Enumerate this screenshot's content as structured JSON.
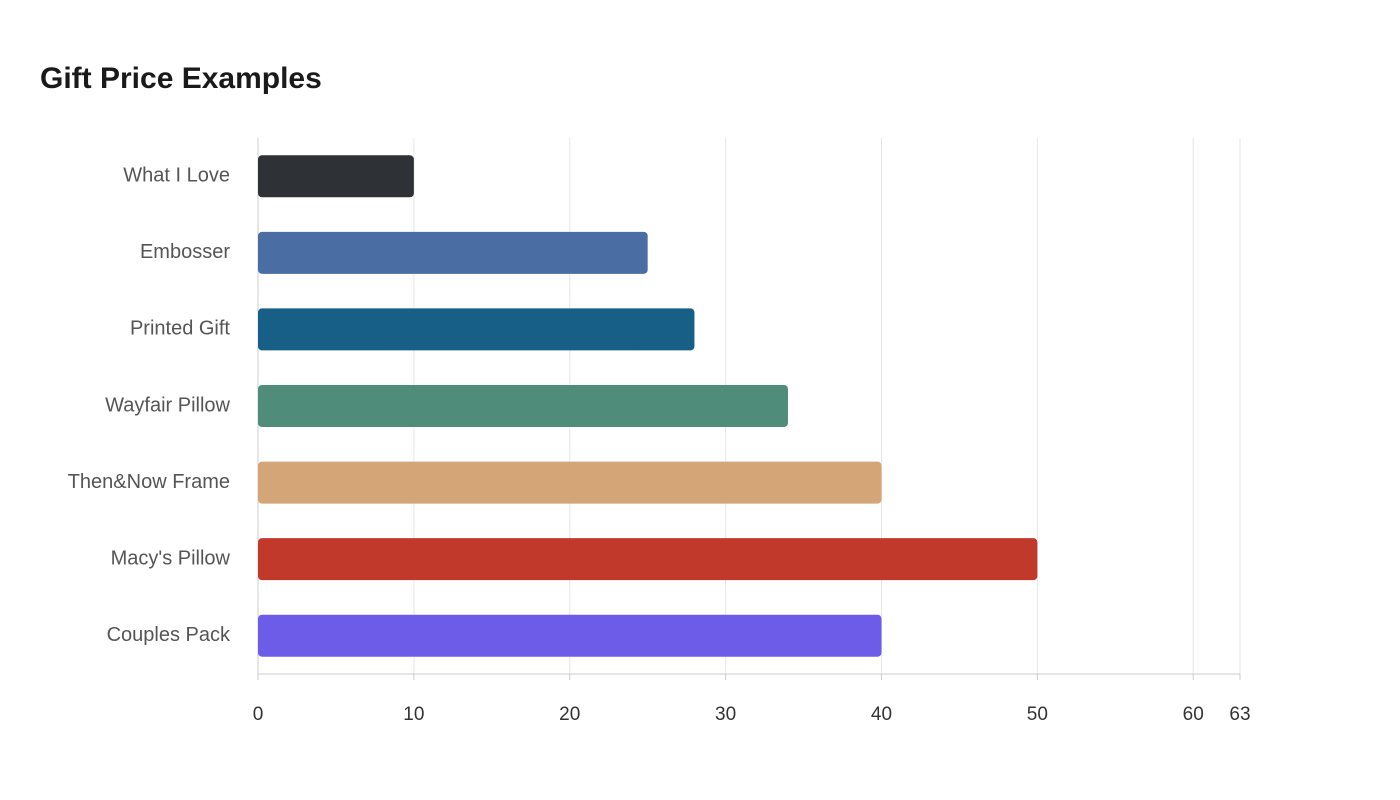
{
  "chart_data": {
    "type": "bar",
    "orientation": "horizontal",
    "title": "Gift Price Examples",
    "categories": [
      "What I Love",
      "Embosser",
      "Printed Gift",
      "Wayfair Pillow",
      "Then&Now Frame",
      "Macy's Pillow",
      "Couples Pack"
    ],
    "values": [
      10,
      25,
      28,
      34,
      40,
      50,
      40
    ],
    "colors": [
      "#2e3236",
      "#4a6ea3",
      "#185f87",
      "#4f8c7a",
      "#d3a577",
      "#c0392b",
      "#6c5ce7"
    ],
    "xlim": [
      0,
      63
    ],
    "xticks": [
      0,
      10,
      20,
      30,
      40,
      50,
      60,
      63
    ],
    "grid": true
  }
}
